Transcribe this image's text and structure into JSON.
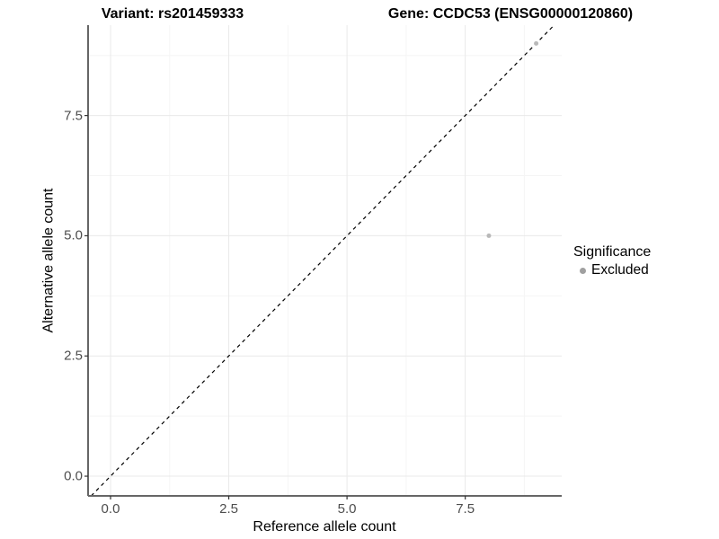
{
  "titles": {
    "variant": "Variant: rs201459333",
    "gene": "Gene: CCDC53 (ENSG00000120860)"
  },
  "axes": {
    "x": {
      "label": "Reference allele count",
      "tick_labels": [
        "0.0",
        "2.5",
        "5.0",
        "7.5"
      ]
    },
    "y": {
      "label": "Alternative allele count",
      "tick_labels": [
        "0.0",
        "2.5",
        "5.0",
        "7.5"
      ]
    }
  },
  "legend": {
    "title": "Significance",
    "items": [
      {
        "label": "Excluded",
        "key_color": "#a0a0a0"
      }
    ]
  },
  "chart_data": {
    "type": "scatter",
    "series": [
      {
        "name": "Excluded",
        "color": "#b9b9b9",
        "points": [
          {
            "x": 8,
            "y": 5
          },
          {
            "x": 9,
            "y": 9
          }
        ]
      }
    ],
    "xlabel": "Reference allele count",
    "ylabel": "Alternative allele count",
    "xlim": [
      -0.475,
      9.54
    ],
    "ylim": [
      -0.41,
      9.38
    ],
    "x_breaks": [
      0,
      2.5,
      5,
      7.5
    ],
    "y_breaks": [
      0,
      2.5,
      5,
      7.5
    ],
    "x_minor_breaks": [
      1.25,
      3.75,
      6.25,
      8.75
    ],
    "y_minor_breaks": [
      1.25,
      3.75,
      6.25,
      8.75
    ],
    "reference_line": {
      "slope": 1,
      "intercept": 0,
      "style": "dashed",
      "color": "#000000"
    },
    "grid": true,
    "legend_position": "right",
    "style": {
      "grid_major": "#e9e9e9",
      "grid_minor": "#f5f5f5",
      "axis_line": "#666666",
      "tick_color": "#333333",
      "tick_label_color": "#4d4d4d",
      "point_radius": 2.5,
      "background": "#ffffff"
    }
  }
}
